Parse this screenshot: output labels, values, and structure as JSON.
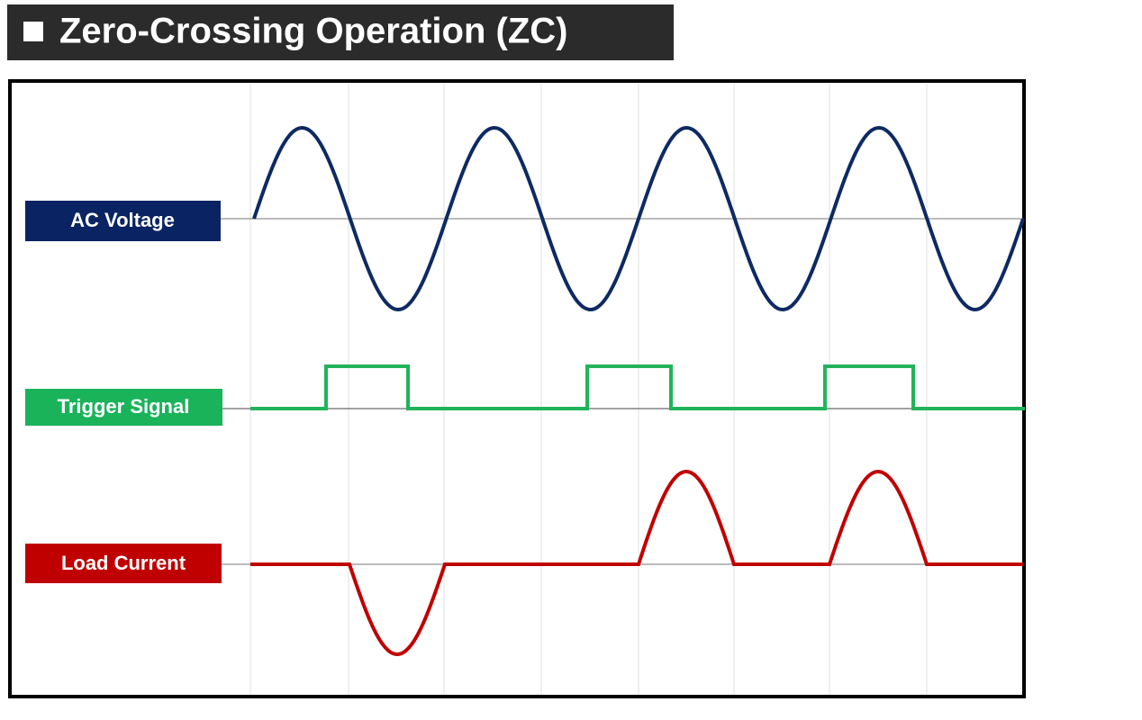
{
  "header": {
    "title": "Zero-Crossing Operation (ZC)"
  },
  "labels": [
    "AC Voltage",
    "Trigger Signal",
    "Load Current"
  ]
}
